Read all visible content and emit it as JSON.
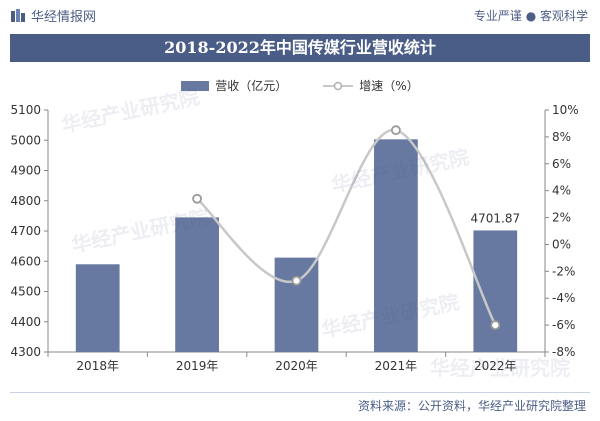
{
  "header": {
    "brand": "华经情报网",
    "slogan": "专业严谨 ● 客观科学"
  },
  "watermark": "华经产业研究院",
  "chart_data": {
    "type": "bar",
    "title": "2018-2022年中国传媒行业营收统计",
    "categories": [
      "2018年",
      "2019年",
      "2020年",
      "2021年",
      "2022年"
    ],
    "series": [
      {
        "name": "营收（亿元）",
        "type": "bar",
        "axis": "left",
        "color": "#6779a0",
        "values": [
          4590,
          4745,
          4612,
          5003,
          4701.87
        ]
      },
      {
        "name": "增速（%）",
        "type": "line",
        "axis": "right",
        "color": "#c8c8c8",
        "values": [
          null,
          3.4,
          -2.7,
          8.5,
          -6.0
        ]
      }
    ],
    "data_labels": [
      {
        "index": 4,
        "text": "4701.87"
      }
    ],
    "y_left": {
      "min": 4300,
      "max": 5100,
      "ticks": [
        "4300",
        "4400",
        "4500",
        "4600",
        "4700",
        "4800",
        "4900",
        "5000",
        "5100"
      ]
    },
    "y_right": {
      "min": -8,
      "max": 10,
      "ticks": [
        "-8%",
        "-6%",
        "-4%",
        "-2%",
        "0%",
        "2%",
        "4%",
        "6%",
        "8%",
        "10%"
      ]
    },
    "legend_position": "top-center"
  },
  "source_text": "资料来源：公开资料，华经产业研究院整理"
}
